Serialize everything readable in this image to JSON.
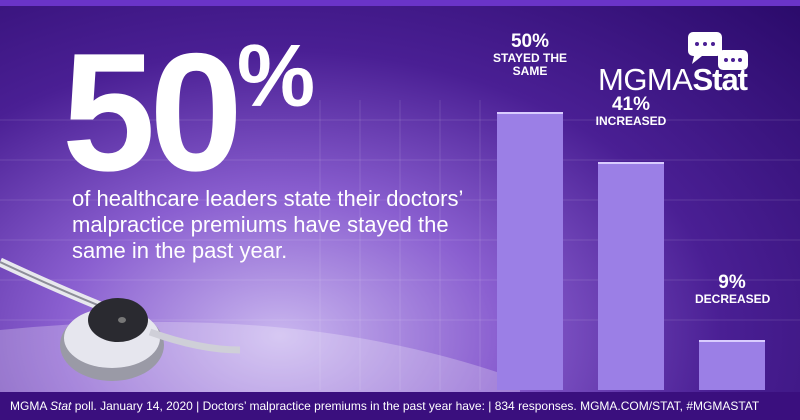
{
  "headline": {
    "number": "50",
    "symbol": "%"
  },
  "body": "of healthcare leaders state their doctors’ malpractice premiums have stayed the same in the past year.",
  "logo": {
    "main": "MGMA",
    "accent": "Stat"
  },
  "footer": {
    "brand": "MGMA",
    "brand_accent": "Stat",
    "text": "poll. January 14, 2020  |  Doctors’ malpractice premiums in the past year have:  |  834 responses. MGMA.COM/STAT, #MGMASTAT"
  },
  "chart_data": {
    "type": "bar",
    "categories": [
      "STAYED THE SAME",
      "INCREASED",
      "DECREASED"
    ],
    "values": [
      50,
      41,
      9
    ],
    "value_labels": [
      "50%",
      "41%",
      "9%"
    ],
    "color": "#9b7fe6"
  }
}
